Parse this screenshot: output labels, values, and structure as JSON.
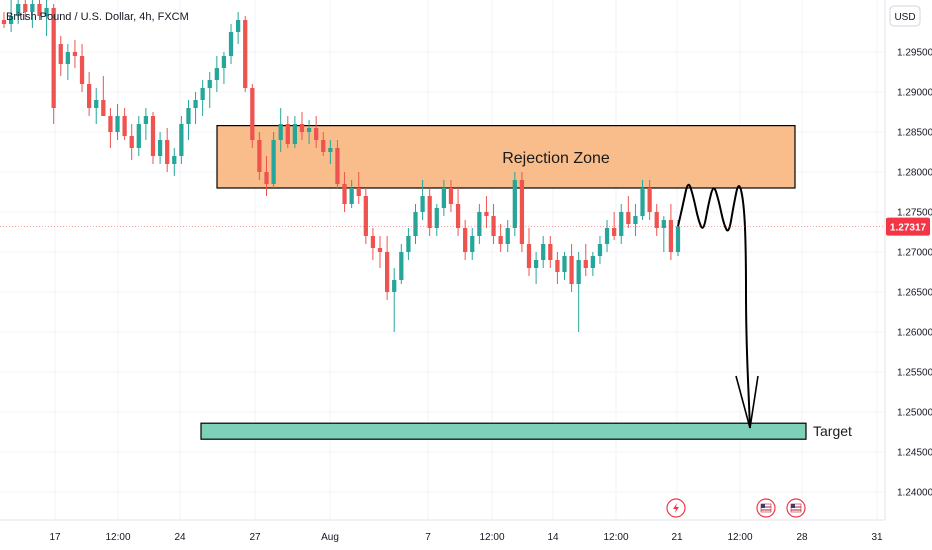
{
  "header": {
    "symbol_title": "British Pound / U.S. Dollar, 4h, FXCM",
    "currency_label": "USD"
  },
  "annotations": {
    "rejection_zone_label": "Rejection Zone",
    "target_label": "Target"
  },
  "current_price_label": "1.27317",
  "colors": {
    "up": "#26a69a",
    "down": "#ef5350",
    "zone_fill": "#f8bd8a",
    "target_fill": "#7fd0b8",
    "price_tag": "#f23645",
    "grid": "#f0f3fa"
  },
  "events": [
    {
      "icon": "lightning-icon",
      "x_label": "21"
    },
    {
      "icon": "us-flag-icon",
      "x_label": "12:00"
    },
    {
      "icon": "us-flag-icon",
      "x_label": "28"
    }
  ],
  "chart_data": {
    "type": "candlestick",
    "title": "British Pound / U.S. Dollar, 4h, FXCM",
    "ylim": [
      1.2365,
      1.3015
    ],
    "y_ticks": [
      "1.29500",
      "1.29000",
      "1.28500",
      "1.28000",
      "1.27500",
      "1.27000",
      "1.26500",
      "1.26000",
      "1.25500",
      "1.25000",
      "1.24500",
      "1.24000"
    ],
    "x_ticks": [
      "17",
      "12:00",
      "24",
      "27",
      "Aug",
      "7",
      "12:00",
      "14",
      "12:00",
      "21",
      "12:00",
      "28",
      "31"
    ],
    "last_price": 1.27317,
    "zones": [
      {
        "name": "Rejection Zone",
        "from": 1.278,
        "to": 1.2858
      },
      {
        "name": "Target",
        "from": 1.2466,
        "to": 1.2486
      }
    ],
    "candles": [
      [
        1.299,
        1.3,
        1.298,
        1.2985
      ],
      [
        1.2985,
        1.302,
        1.2975,
        1.2995
      ],
      [
        1.2995,
        1.302,
        1.2985,
        1.301
      ],
      [
        1.301,
        1.303,
        1.299,
        1.3
      ],
      [
        1.3,
        1.302,
        1.298,
        1.301
      ],
      [
        1.301,
        1.302,
        1.299,
        1.2995
      ],
      [
        1.2995,
        1.3015,
        1.297,
        1.3005
      ],
      [
        1.3005,
        1.301,
        1.286,
        1.288
      ],
      [
        1.296,
        1.297,
        1.292,
        1.2935
      ],
      [
        1.2935,
        1.296,
        1.2915,
        1.295
      ],
      [
        1.295,
        1.2965,
        1.293,
        1.2945
      ],
      [
        1.2945,
        1.296,
        1.29,
        1.291
      ],
      [
        1.291,
        1.2925,
        1.287,
        1.288
      ],
      [
        1.288,
        1.2905,
        1.286,
        1.289
      ],
      [
        1.289,
        1.292,
        1.287,
        1.287
      ],
      [
        1.287,
        1.288,
        1.283,
        1.285
      ],
      [
        1.285,
        1.2885,
        1.284,
        1.287
      ],
      [
        1.287,
        1.288,
        1.284,
        1.2845
      ],
      [
        1.2845,
        1.286,
        1.2815,
        1.283
      ],
      [
        1.283,
        1.287,
        1.282,
        1.286
      ],
      [
        1.286,
        1.288,
        1.284,
        1.287
      ],
      [
        1.287,
        1.2875,
        1.281,
        1.282
      ],
      [
        1.282,
        1.285,
        1.281,
        1.284
      ],
      [
        1.284,
        1.2855,
        1.28,
        1.281
      ],
      [
        1.281,
        1.283,
        1.2795,
        1.282
      ],
      [
        1.282,
        1.287,
        1.281,
        1.286
      ],
      [
        1.286,
        1.289,
        1.284,
        1.288
      ],
      [
        1.288,
        1.29,
        1.286,
        1.289
      ],
      [
        1.289,
        1.2915,
        1.287,
        1.2905
      ],
      [
        1.2905,
        1.2925,
        1.288,
        1.2915
      ],
      [
        1.2915,
        1.2945,
        1.29,
        1.293
      ],
      [
        1.293,
        1.295,
        1.291,
        1.2945
      ],
      [
        1.2945,
        1.2985,
        1.2935,
        1.2975
      ],
      [
        1.2975,
        1.3,
        1.296,
        1.299
      ],
      [
        1.299,
        1.2995,
        1.29,
        1.2905
      ],
      [
        1.2905,
        1.291,
        1.283,
        1.284
      ],
      [
        1.284,
        1.285,
        1.279,
        1.28
      ],
      [
        1.28,
        1.282,
        1.277,
        1.2785
      ],
      [
        1.2785,
        1.285,
        1.278,
        1.284
      ],
      [
        1.284,
        1.288,
        1.2825,
        1.286
      ],
      [
        1.286,
        1.287,
        1.283,
        1.2835
      ],
      [
        1.2835,
        1.287,
        1.283,
        1.286
      ],
      [
        1.286,
        1.2875,
        1.284,
        1.285
      ],
      [
        1.285,
        1.2865,
        1.2835,
        1.2855
      ],
      [
        1.2855,
        1.287,
        1.283,
        1.284
      ],
      [
        1.284,
        1.285,
        1.282,
        1.2825
      ],
      [
        1.2825,
        1.284,
        1.281,
        1.283
      ],
      [
        1.283,
        1.284,
        1.278,
        1.2785
      ],
      [
        1.2785,
        1.28,
        1.275,
        1.276
      ],
      [
        1.276,
        1.279,
        1.2755,
        1.278
      ],
      [
        1.278,
        1.28,
        1.276,
        1.277
      ],
      [
        1.277,
        1.278,
        1.271,
        1.272
      ],
      [
        1.272,
        1.273,
        1.269,
        1.2705
      ],
      [
        1.2705,
        1.272,
        1.268,
        1.27
      ],
      [
        1.27,
        1.272,
        1.264,
        1.265
      ],
      [
        1.265,
        1.268,
        1.26,
        1.2665
      ],
      [
        1.2665,
        1.271,
        1.266,
        1.27
      ],
      [
        1.27,
        1.273,
        1.269,
        1.272
      ],
      [
        1.272,
        1.276,
        1.271,
        1.275
      ],
      [
        1.275,
        1.279,
        1.274,
        1.277
      ],
      [
        1.277,
        1.278,
        1.272,
        1.273
      ],
      [
        1.273,
        1.276,
        1.272,
        1.2755
      ],
      [
        1.2755,
        1.279,
        1.2745,
        1.278
      ],
      [
        1.278,
        1.279,
        1.275,
        1.276
      ],
      [
        1.276,
        1.278,
        1.272,
        1.273
      ],
      [
        1.273,
        1.274,
        1.269,
        1.27
      ],
      [
        1.27,
        1.273,
        1.269,
        1.272
      ],
      [
        1.272,
        1.276,
        1.271,
        1.275
      ],
      [
        1.275,
        1.277,
        1.273,
        1.2745
      ],
      [
        1.2745,
        1.276,
        1.271,
        1.272
      ],
      [
        1.272,
        1.2735,
        1.27,
        1.271
      ],
      [
        1.271,
        1.274,
        1.27,
        1.273
      ],
      [
        1.273,
        1.28,
        1.272,
        1.279
      ],
      [
        1.279,
        1.28,
        1.27,
        1.271
      ],
      [
        1.271,
        1.273,
        1.267,
        1.268
      ],
      [
        1.268,
        1.27,
        1.266,
        1.269
      ],
      [
        1.269,
        1.272,
        1.268,
        1.271
      ],
      [
        1.271,
        1.272,
        1.268,
        1.269
      ],
      [
        1.269,
        1.27,
        1.266,
        1.2675
      ],
      [
        1.2675,
        1.27,
        1.2665,
        1.2695
      ],
      [
        1.2695,
        1.271,
        1.265,
        1.266
      ],
      [
        1.266,
        1.27,
        1.26,
        1.269
      ],
      [
        1.269,
        1.271,
        1.267,
        1.268
      ],
      [
        1.268,
        1.27,
        1.267,
        1.2695
      ],
      [
        1.2695,
        1.272,
        1.2685,
        1.271
      ],
      [
        1.271,
        1.274,
        1.27,
        1.273
      ],
      [
        1.273,
        1.275,
        1.2715,
        1.272
      ],
      [
        1.272,
        1.276,
        1.271,
        1.275
      ],
      [
        1.275,
        1.277,
        1.273,
        1.2735
      ],
      [
        1.2735,
        1.276,
        1.272,
        1.2745
      ],
      [
        1.2745,
        1.279,
        1.274,
        1.278
      ],
      [
        1.278,
        1.279,
        1.274,
        1.275
      ],
      [
        1.275,
        1.276,
        1.272,
        1.273
      ],
      [
        1.273,
        1.2745,
        1.27,
        1.274
      ],
      [
        1.274,
        1.276,
        1.269,
        1.27
      ],
      [
        1.27,
        1.274,
        1.2695,
        1.2732
      ]
    ],
    "projection_path": [
      [
        1.2732,
        1.276,
        1.279,
        1.277,
        1.274,
        1.2725,
        1.276,
        1.2785,
        1.2765,
        1.2735,
        1.2722,
        1.276,
        1.279,
        1.276,
        1.27,
        1.26,
        1.248
      ]
    ]
  }
}
